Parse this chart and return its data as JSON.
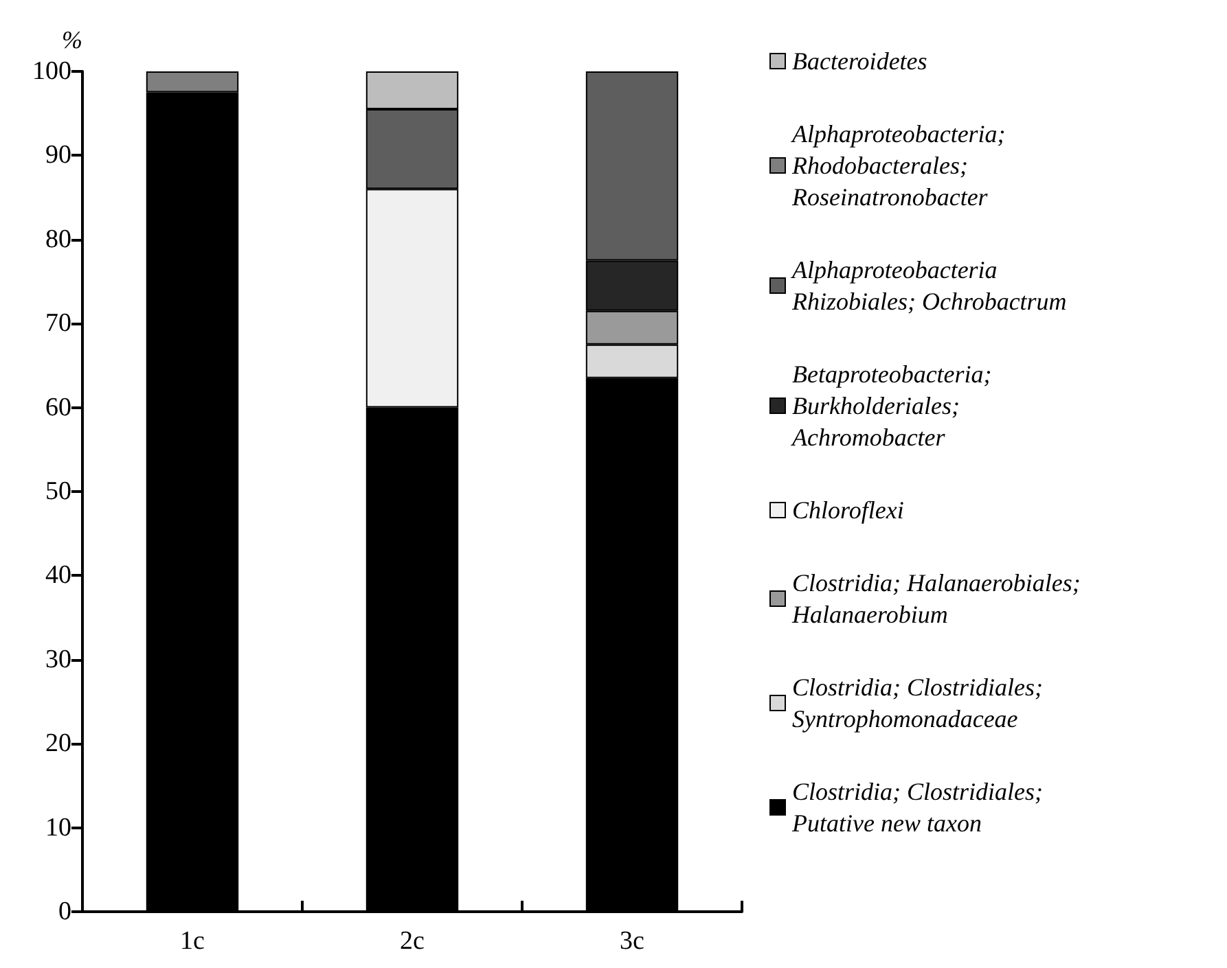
{
  "chart_data": {
    "type": "bar",
    "stacked": true,
    "ylabel": "%",
    "categories": [
      "1c",
      "2c",
      "3c"
    ],
    "ylim": [
      0,
      100
    ],
    "yticks": [
      0,
      10,
      20,
      30,
      40,
      50,
      60,
      70,
      80,
      90,
      100
    ],
    "grid": false,
    "legend": "right",
    "series": [
      {
        "name": "Clostridia; Clostridiales; Putative new taxon",
        "color": "#000000",
        "values": [
          97.5,
          60,
          63.5
        ]
      },
      {
        "name": "Clostridia; Clostridiales; Syntrophomonadaceae",
        "color": "#d9d9d9",
        "values": [
          null,
          null,
          4
        ]
      },
      {
        "name": "Clostridia; Halanaerobiales; Halanaerobium",
        "color": "#9a9a9a",
        "values": [
          null,
          null,
          4
        ]
      },
      {
        "name": "Chloroflexi",
        "color": "#f0f0f0",
        "values": [
          null,
          26,
          null
        ]
      },
      {
        "name": "Betaproteobacteria; Burkholderiales; Achromobacter",
        "color": "#262626",
        "values": [
          null,
          null,
          6
        ]
      },
      {
        "name": "Alphaproteobacteria Rhizobiales; Ochrobactrum",
        "color": "#5e5e5e",
        "values": [
          null,
          9.5,
          22.5
        ]
      },
      {
        "name": "Alphaproteobacteria; Rhodobacterales; Roseinatronobacter",
        "color": "#7f7f7f",
        "values": [
          2.5,
          null,
          null
        ]
      },
      {
        "name": "Bacteroidetes",
        "color": "#bdbdbd",
        "values": [
          null,
          4.5,
          null
        ]
      }
    ]
  }
}
